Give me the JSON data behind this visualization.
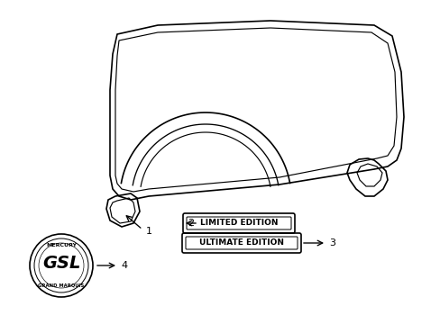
{
  "bg_color": "#ffffff",
  "line_color": "#000000",
  "line_width": 1.2,
  "fig_width": 4.89,
  "fig_height": 3.6,
  "dpi": 100,
  "label1": "1",
  "label2": "2",
  "label3": "3",
  "label4": "4",
  "badge1_text": "LIMITED EDITION",
  "badge2_text": "ULTIMATE EDITION",
  "badge3_top": "MERCURY",
  "badge3_mid": "GSL",
  "badge3_bot": "GRAND MARQUIS"
}
